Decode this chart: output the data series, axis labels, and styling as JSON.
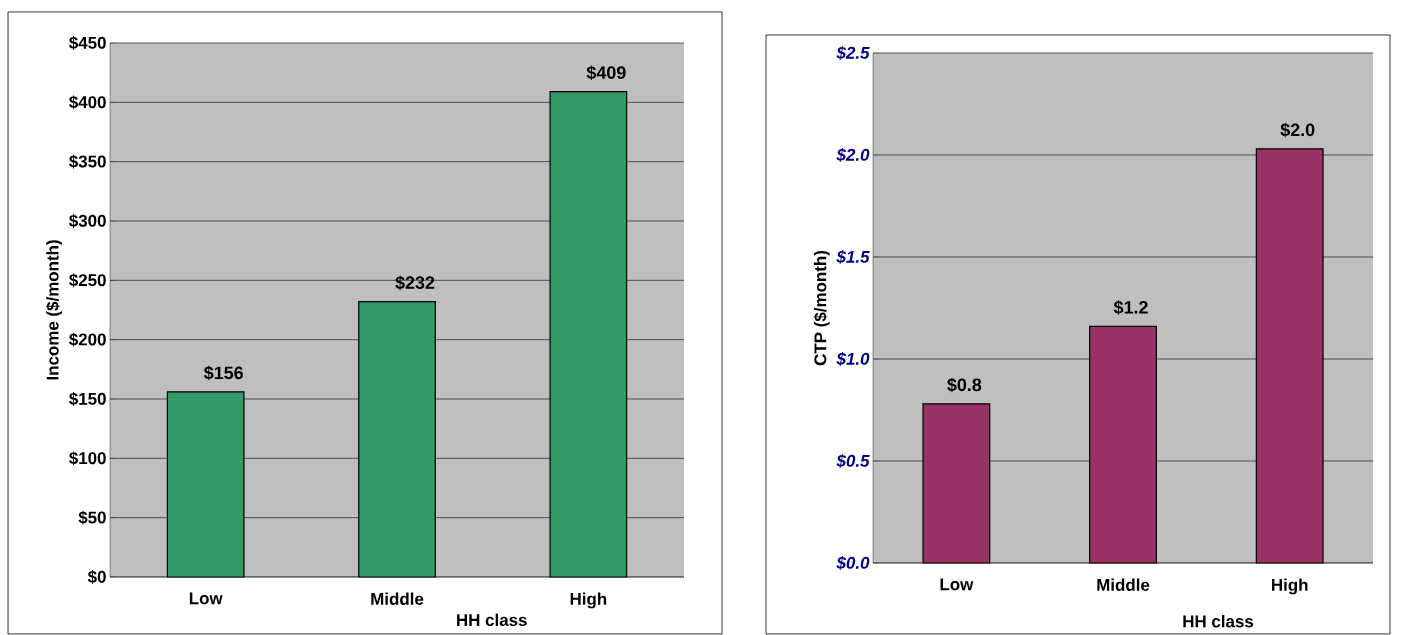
{
  "chart_data": [
    {
      "type": "bar",
      "xlabel": "HH class",
      "ylabel": "Income ($/month)",
      "categories": [
        "Low",
        "Middle",
        "High"
      ],
      "values": [
        156,
        232,
        409
      ],
      "value_labels": [
        "$156",
        "$232",
        "$409"
      ],
      "color": "#339966",
      "ylim": [
        0,
        450
      ],
      "yticks": [
        {
          "value": 0,
          "label": "$0"
        },
        {
          "value": 50,
          "label": "$50"
        },
        {
          "value": 100,
          "label": "$100"
        },
        {
          "value": 150,
          "label": "$150"
        },
        {
          "value": 200,
          "label": "$200"
        },
        {
          "value": 250,
          "label": "$250"
        },
        {
          "value": 300,
          "label": "$300"
        },
        {
          "value": 350,
          "label": "$350"
        },
        {
          "value": 400,
          "label": "$400"
        },
        {
          "value": 450,
          "label": "$450"
        }
      ],
      "grid": "y"
    },
    {
      "type": "bar",
      "xlabel": "HH class",
      "ylabel": "CTP ($/month)",
      "categories": [
        "Low",
        "Middle",
        "High"
      ],
      "values": [
        0.78,
        1.16,
        2.03
      ],
      "value_labels": [
        "$0.8",
        "$1.2",
        "$2.0"
      ],
      "color": "#993366",
      "ylim": [
        0,
        2.5
      ],
      "yticks": [
        {
          "value": 0,
          "label": "$0.0"
        },
        {
          "value": 0.5,
          "label": "$0.5"
        },
        {
          "value": 1.0,
          "label": "$1.0"
        },
        {
          "value": 1.5,
          "label": "$1.5"
        },
        {
          "value": 2.0,
          "label": "$2.0"
        },
        {
          "value": 2.5,
          "label": "$2.5"
        }
      ],
      "grid": "y"
    }
  ]
}
